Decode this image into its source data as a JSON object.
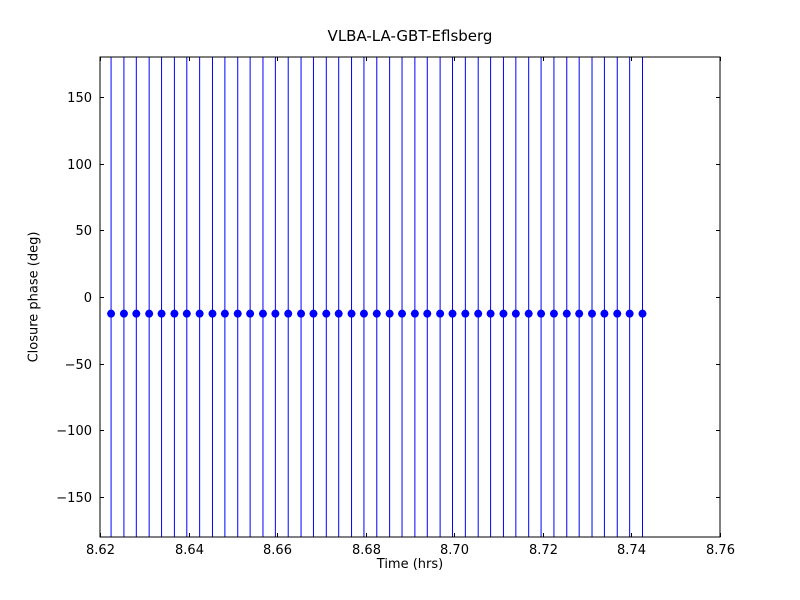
{
  "chart_data": {
    "type": "scatter",
    "title": "VLBA-LA-GBT-Eflsberg",
    "xlabel": "Time (hrs)",
    "ylabel": "Closure phase (deg)",
    "xlim": [
      8.62,
      8.76
    ],
    "ylim": [
      -180,
      180
    ],
    "xticks": [
      8.62,
      8.64,
      8.66,
      8.68,
      8.7,
      8.72,
      8.74,
      8.76
    ],
    "xtick_labels": [
      "8.62",
      "8.64",
      "8.66",
      "8.68",
      "8.70",
      "8.72",
      "8.74",
      "8.76"
    ],
    "yticks": [
      -150,
      -100,
      -50,
      0,
      50,
      100,
      150
    ],
    "ytick_labels": [
      "−150",
      "−100",
      "−50",
      "0",
      "50",
      "100",
      "150"
    ],
    "grid": false,
    "legend": null,
    "series": [
      {
        "name": "closure phase",
        "marker": "circle",
        "color": "#0000ff",
        "marker_size_px": 8,
        "y_value": -12.5,
        "error_bars": "span_full_y_range",
        "x": [
          8.6225,
          8.6254,
          8.6282,
          8.6311,
          8.6339,
          8.6368,
          8.6396,
          8.6425,
          8.6454,
          8.6482,
          8.6511,
          8.6539,
          8.6568,
          8.6596,
          8.6625,
          8.6654,
          8.6682,
          8.6711,
          8.6739,
          8.6768,
          8.6796,
          8.6825,
          8.6854,
          8.6882,
          8.6911,
          8.6939,
          8.6968,
          8.6996,
          8.7025,
          8.7054,
          8.7082,
          8.7111,
          8.7139,
          8.7168,
          8.7196,
          8.7225,
          8.7254,
          8.7282,
          8.7311,
          8.7339,
          8.7368,
          8.7396,
          8.7425
        ]
      }
    ],
    "axes_color": "#000000",
    "background_color": "#ffffff"
  }
}
